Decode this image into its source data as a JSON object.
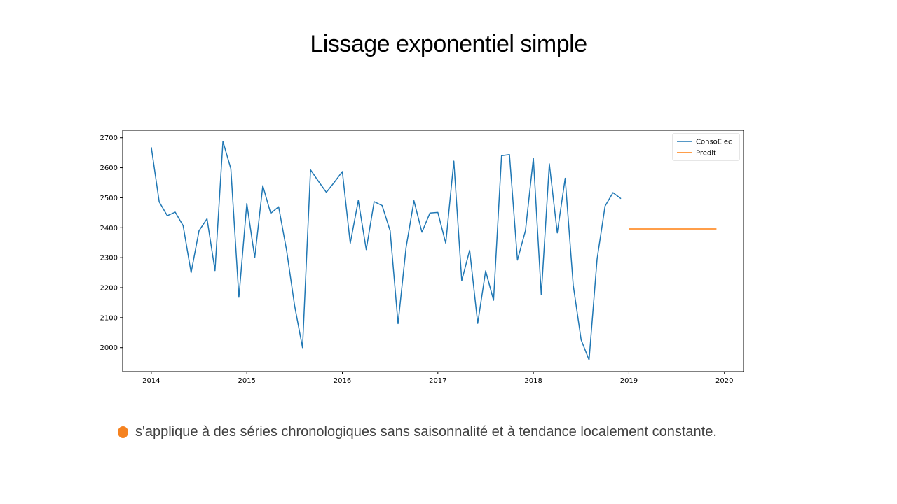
{
  "slide": {
    "title": "Lissage exponentiel simple",
    "bullet_text": "s'applique à des séries chronologiques sans saisonnalité et à tendance localement constante."
  },
  "colors": {
    "conso": "#1f77b4",
    "predit": "#ff7f0e",
    "bullet": "#f58220"
  },
  "chart_data": {
    "type": "line",
    "title": "",
    "xlabel": "",
    "ylabel": "",
    "xlim": [
      2013.7,
      2020.2
    ],
    "ylim": [
      1920,
      2725
    ],
    "xticks": [
      2014,
      2015,
      2016,
      2017,
      2018,
      2019,
      2020
    ],
    "yticks": [
      2000,
      2100,
      2200,
      2300,
      2400,
      2500,
      2600,
      2700
    ],
    "legend_position": "top-right",
    "grid": false,
    "series": [
      {
        "name": "ConsoElec",
        "color": "#1f77b4",
        "x": [
          2014.0,
          2014.083,
          2014.167,
          2014.25,
          2014.333,
          2014.417,
          2014.5,
          2014.583,
          2014.667,
          2014.75,
          2014.833,
          2014.917,
          2015.0,
          2015.083,
          2015.167,
          2015.25,
          2015.333,
          2015.417,
          2015.5,
          2015.583,
          2015.667,
          2015.75,
          2015.833,
          2015.917,
          2016.0,
          2016.083,
          2016.167,
          2016.25,
          2016.333,
          2016.417,
          2016.5,
          2016.583,
          2016.667,
          2016.75,
          2016.833,
          2016.917,
          2017.0,
          2017.083,
          2017.167,
          2017.25,
          2017.333,
          2017.417,
          2017.5,
          2017.583,
          2017.667,
          2017.75,
          2017.833,
          2017.917,
          2018.0,
          2018.083,
          2018.167,
          2018.25,
          2018.333,
          2018.417,
          2018.5,
          2018.583,
          2018.667,
          2018.75,
          2018.833,
          2018.917
        ],
        "y": [
          2668,
          2486,
          2440,
          2452,
          2407,
          2250,
          2390,
          2430,
          2257,
          2688,
          2597,
          2168,
          2481,
          2300,
          2540,
          2448,
          2470,
          2324,
          2140,
          2000,
          2593,
          2555,
          2518,
          2552,
          2587,
          2348,
          2491,
          2327,
          2487,
          2474,
          2390,
          2080,
          2333,
          2490,
          2385,
          2449,
          2451,
          2348,
          2622,
          2223,
          2325,
          2081,
          2256,
          2158,
          2640,
          2644,
          2292,
          2390,
          2632,
          2176,
          2613,
          2383,
          2565,
          2208,
          2026,
          1959,
          2295,
          2472,
          2517,
          2497
        ]
      },
      {
        "name": "Predit",
        "color": "#ff7f0e",
        "x": [
          2019.0,
          2019.917
        ],
        "y": [
          2396,
          2396
        ]
      }
    ]
  }
}
